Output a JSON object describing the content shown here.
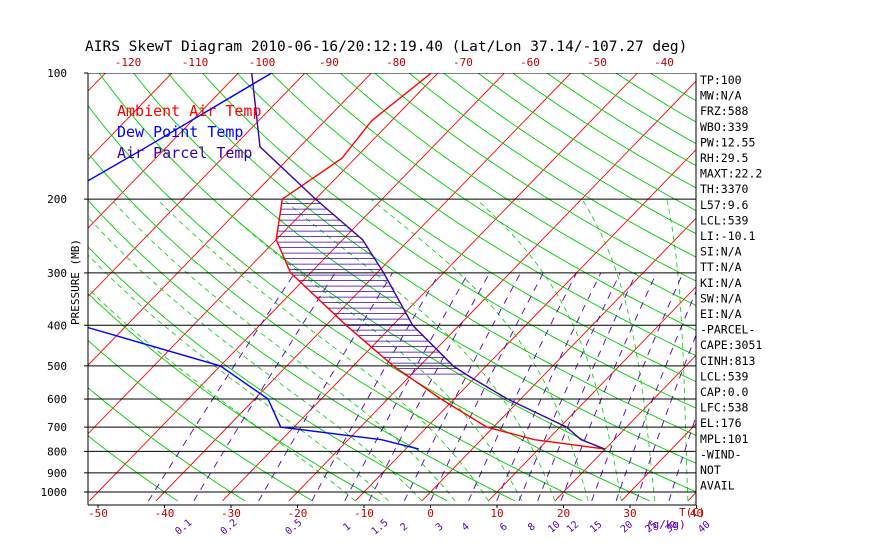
{
  "chart_data": {
    "type": "line",
    "title": "AIRS SkewT Diagram 2010-06-16/20:12:19.40 (Lat/Lon 37.14/-107.27 deg)",
    "ylabel": "PRESSURE (MB)",
    "xlabel": "T(C)",
    "mixing_ratio_unit": "(g/kg)",
    "y_scale": "log",
    "ylim": [
      1050,
      100
    ],
    "xlim_bottom": [
      -50,
      40
    ],
    "pressure_ticks": [
      "100",
      "200",
      "300",
      "400",
      "500",
      "600",
      "700",
      "800",
      "900",
      "1000"
    ],
    "temp_ticks_bottom": [
      "-50",
      "-40",
      "-30",
      "-20",
      "-10",
      "0",
      "10",
      "20",
      "30",
      "40"
    ],
    "temp_ticks_top": [
      "-120",
      "-110",
      "-100",
      "-90",
      "-80",
      "-70",
      "-60",
      "-50",
      "-40"
    ],
    "mixing_ratio_ticks": [
      "0.1",
      "0.2",
      "0.5",
      "1",
      "1.5",
      "2",
      "3",
      "4",
      "6",
      "8",
      "10",
      "12",
      "15",
      "20",
      "25",
      "30",
      "40"
    ],
    "legend": [
      {
        "label": "Ambient Air Temp",
        "color": "#ff0000"
      },
      {
        "label": "Dew Point Temp",
        "color": "#0000ff"
      },
      {
        "label": "Air Parcel Temp",
        "color": "#3a00aa"
      }
    ],
    "series": [
      {
        "name": "Ambient Air Temp",
        "color": "#ff0000",
        "points": [
          [
            100,
            -61
          ],
          [
            130,
            -63
          ],
          [
            160,
            -62
          ],
          [
            200,
            -65
          ],
          [
            250,
            -60
          ],
          [
            300,
            -53
          ],
          [
            400,
            -37
          ],
          [
            500,
            -24
          ],
          [
            600,
            -12
          ],
          [
            700,
            -1
          ],
          [
            750,
            8
          ],
          [
            790,
            20
          ]
        ]
      },
      {
        "name": "Dew Point Temp",
        "color": "#0000ff",
        "points": [
          [
            100,
            -85
          ],
          [
            150,
            -93
          ],
          [
            200,
            -99
          ],
          [
            250,
            -92
          ],
          [
            300,
            -87
          ],
          [
            400,
            -77
          ],
          [
            500,
            -50
          ],
          [
            600,
            -38
          ],
          [
            700,
            -32
          ],
          [
            750,
            -15
          ],
          [
            790,
            -8
          ]
        ]
      },
      {
        "name": "Air Parcel Temp",
        "color": "#3a00aa",
        "points": [
          [
            100,
            -88
          ],
          [
            150,
            -76
          ],
          [
            200,
            -60
          ],
          [
            250,
            -47
          ],
          [
            300,
            -39
          ],
          [
            400,
            -27
          ],
          [
            500,
            -15
          ],
          [
            530,
            -11
          ],
          [
            600,
            -2
          ],
          [
            700,
            11
          ],
          [
            750,
            15
          ],
          [
            790,
            20
          ]
        ]
      }
    ],
    "stats": [
      "TP:100",
      "MW:N/A",
      "FRZ:588",
      "WBO:339",
      "PW:12.55",
      "RH:29.5",
      "MAXT:22.2",
      "TH:3370",
      "L57:9.6",
      "LCL:539",
      "LI:-10.1",
      "SI:N/A",
      "TT:N/A",
      "KI:N/A",
      "SW:N/A",
      "EI:N/A",
      "-PARCEL-",
      "CAPE:3051",
      "CINH:813",
      "LCL:539",
      "CAP:0.0",
      "LFC:538",
      "EL:176",
      "MPL:101",
      "-WIND-",
      "NOT",
      "AVAIL"
    ],
    "colors": {
      "isotherm": "#ff0000",
      "dry_adiabat": "#00cc00",
      "moist_adiabat": "#00cc00",
      "mixing_ratio": "#5500aa",
      "isobar": "#000000",
      "hatch": "#3a00aa"
    }
  }
}
